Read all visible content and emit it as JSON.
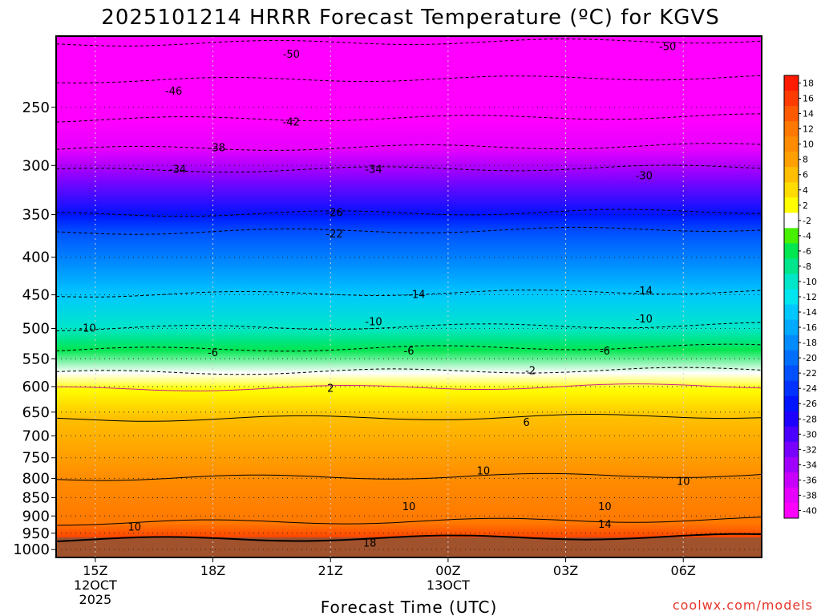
{
  "chart_data": {
    "type": "time-height contour",
    "title": "2025101214 HRRR Forecast Temperature (ºC) for KGVS",
    "xlabel": "Forecast Time (UTC)",
    "ylabel": "",
    "credit": "coolwx.com/models",
    "x_ticks": [
      {
        "hour": 1,
        "lines": [
          "15Z",
          "12OCT",
          "2025"
        ]
      },
      {
        "hour": 4,
        "lines": [
          "18Z"
        ]
      },
      {
        "hour": 7,
        "lines": [
          "21Z"
        ]
      },
      {
        "hour": 10,
        "lines": [
          "00Z",
          "13OCT"
        ]
      },
      {
        "hour": 13,
        "lines": [
          "03Z"
        ]
      },
      {
        "hour": 16,
        "lines": [
          "06Z"
        ]
      }
    ],
    "x_range_hours": [
      0,
      18
    ],
    "y_ticks": [
      250,
      300,
      350,
      400,
      450,
      500,
      550,
      600,
      650,
      700,
      750,
      800,
      850,
      900,
      950,
      1000
    ],
    "y_range_hpa": [
      200,
      1025
    ],
    "y_scale": "log",
    "colorbar": {
      "ticks": [
        18,
        16,
        14,
        12,
        10,
        8,
        6,
        4,
        2,
        -2,
        -4,
        -6,
        -8,
        -10,
        -12,
        -14,
        -16,
        -18,
        -20,
        -22,
        -24,
        -26,
        -28,
        -30,
        -32,
        -34,
        -36,
        -38,
        -40
      ],
      "colors": [
        "#ff1a00",
        "#ff3c00",
        "#ff5a00",
        "#ff7800",
        "#ff8c00",
        "#ffa000",
        "#ffbe00",
        "#ffdc00",
        "#ffff00",
        "#ffffff",
        "#46f000",
        "#00e650",
        "#00e68c",
        "#00e6c8",
        "#00e6f0",
        "#00c8ff",
        "#00aaff",
        "#008cff",
        "#006eff",
        "#0050ff",
        "#0032ff",
        "#0014ff",
        "#1e00ff",
        "#4b00ff",
        "#7800ff",
        "#a000ff",
        "#c800ff",
        "#e600ff",
        "#ff00ff"
      ],
      "unit": "ºC"
    },
    "levels_hpa_temperature": [
      {
        "level": 205,
        "temp": -51
      },
      {
        "level": 230,
        "temp": -47
      },
      {
        "level": 260,
        "temp": -42
      },
      {
        "level": 285,
        "temp": -38
      },
      {
        "level": 305,
        "temp": -34
      },
      {
        "level": 350,
        "temp": -26
      },
      {
        "level": 370,
        "temp": -22
      },
      {
        "level": 450,
        "temp": -14
      },
      {
        "level": 500,
        "temp": -10
      },
      {
        "level": 535,
        "temp": -6
      },
      {
        "level": 575,
        "temp": -2
      },
      {
        "level": 605,
        "temp": 2
      },
      {
        "level": 665,
        "temp": 6
      },
      {
        "level": 800,
        "temp": 10
      },
      {
        "level": 920,
        "temp": 12
      },
      {
        "level": 970,
        "temp": 16
      }
    ],
    "contour_labels": [
      {
        "text": "-50",
        "hour": 6.0,
        "hpa": 212
      },
      {
        "text": "-50",
        "hour": 15.6,
        "hpa": 207
      },
      {
        "text": "-46",
        "hour": 3.0,
        "hpa": 238
      },
      {
        "text": "-42",
        "hour": 6.0,
        "hpa": 262
      },
      {
        "text": "-38",
        "hour": 4.1,
        "hpa": 284
      },
      {
        "text": "-34",
        "hour": 3.1,
        "hpa": 304
      },
      {
        "text": "-34",
        "hour": 8.1,
        "hpa": 304
      },
      {
        "text": "-30",
        "hour": 15.0,
        "hpa": 310
      },
      {
        "text": "-26",
        "hour": 7.1,
        "hpa": 348
      },
      {
        "text": "-22",
        "hour": 7.1,
        "hpa": 372
      },
      {
        "text": "-14",
        "hour": 9.2,
        "hpa": 450
      },
      {
        "text": "-14",
        "hour": 15.0,
        "hpa": 445
      },
      {
        "text": "-10",
        "hour": 0.8,
        "hpa": 500
      },
      {
        "text": "-10",
        "hour": 8.1,
        "hpa": 490
      },
      {
        "text": "-10",
        "hour": 15.0,
        "hpa": 486
      },
      {
        "text": "-6",
        "hour": 4.0,
        "hpa": 540
      },
      {
        "text": "-6",
        "hour": 9.0,
        "hpa": 537
      },
      {
        "text": "-6",
        "hour": 14.0,
        "hpa": 537
      },
      {
        "text": "-2",
        "hour": 12.1,
        "hpa": 571
      },
      {
        "text": "2",
        "hour": 7.0,
        "hpa": 604
      },
      {
        "text": "6",
        "hour": 12.0,
        "hpa": 672
      },
      {
        "text": "10",
        "hour": 10.9,
        "hpa": 782
      },
      {
        "text": "10",
        "hour": 16.0,
        "hpa": 808
      },
      {
        "text": "10",
        "hour": 9.0,
        "hpa": 875
      },
      {
        "text": "10",
        "hour": 14.0,
        "hpa": 875
      },
      {
        "text": "10",
        "hour": 2.0,
        "hpa": 933
      },
      {
        "text": "14",
        "hour": 14.0,
        "hpa": 925
      },
      {
        "text": "18",
        "hour": 8.0,
        "hpa": 981
      }
    ]
  }
}
